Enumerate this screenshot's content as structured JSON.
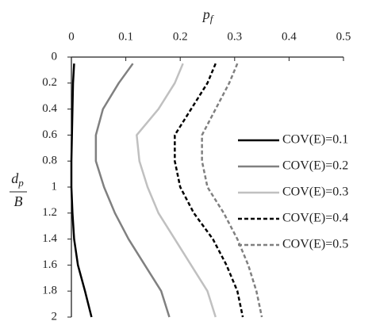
{
  "chart_data": {
    "type": "line",
    "orientation": "depth-down",
    "x_label": {
      "symbol": "p",
      "subscript": "f"
    },
    "y_label": {
      "symbol": "d",
      "subscript": "p",
      "denominator": "B"
    },
    "depths": [
      0.05,
      0.2,
      0.4,
      0.6,
      0.8,
      1.0,
      1.2,
      1.4,
      1.6,
      1.8,
      2.0
    ],
    "series": [
      {
        "name": "COV(E)=0.1",
        "color": "#000000",
        "dash": false,
        "values": [
          0.005,
          0.003,
          0.002,
          0.001,
          0.0,
          0.0,
          0.002,
          0.005,
          0.012,
          0.025,
          0.037
        ]
      },
      {
        "name": "COV(E)=0.2",
        "color": "#808080",
        "dash": false,
        "values": [
          0.113,
          0.087,
          0.058,
          0.045,
          0.045,
          0.06,
          0.08,
          0.105,
          0.135,
          0.165,
          0.18
        ]
      },
      {
        "name": "COV(E)=0.3",
        "color": "#c0c0c0",
        "dash": false,
        "values": [
          0.205,
          0.19,
          0.16,
          0.12,
          0.125,
          0.14,
          0.16,
          0.19,
          0.22,
          0.25,
          0.265
        ]
      },
      {
        "name": "COV(E)=0.4",
        "color": "#000000",
        "dash": true,
        "values": [
          0.265,
          0.25,
          0.22,
          0.19,
          0.19,
          0.2,
          0.225,
          0.26,
          0.285,
          0.305,
          0.315
        ]
      },
      {
        "name": "COV(E)=0.5",
        "color": "#808080",
        "dash": true,
        "values": [
          0.305,
          0.29,
          0.265,
          0.24,
          0.24,
          0.25,
          0.28,
          0.305,
          0.325,
          0.34,
          0.35
        ]
      }
    ],
    "xlim": [
      0,
      0.5
    ],
    "xticks": [
      0,
      0.1,
      0.2,
      0.3,
      0.4,
      0.5
    ],
    "ylim": [
      0,
      2
    ],
    "yticks": [
      0,
      0.2,
      0.4,
      0.6,
      0.8,
      1,
      1.2,
      1.4,
      1.6,
      1.8,
      2
    ],
    "y_inverted": true,
    "legend": "right"
  }
}
